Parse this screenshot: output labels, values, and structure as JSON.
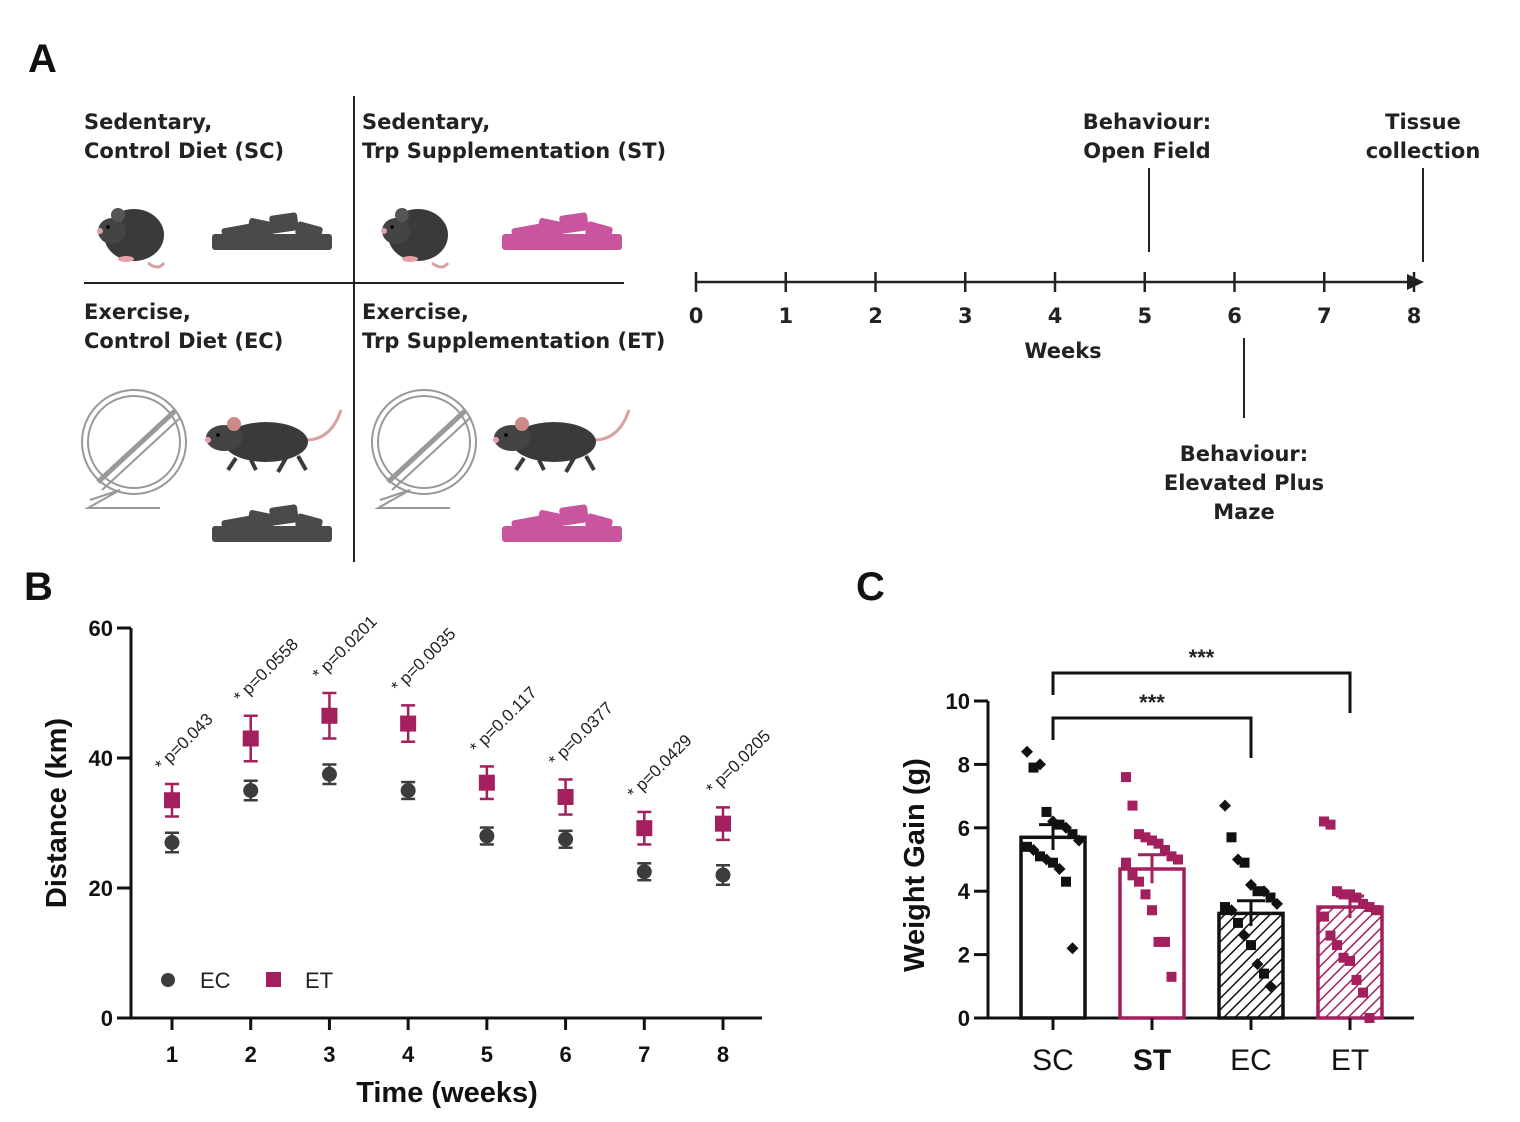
{
  "panels": {
    "a": "A",
    "b": "B",
    "c": "C"
  },
  "design": {
    "sc_line1": "Sedentary,",
    "sc_line2": "Control Diet (SC)",
    "st_line1": "Sedentary,",
    "st_line2": "Trp Supplementation (ST)",
    "ec_line1": "Exercise,",
    "ec_line2": "Control Diet (EC)",
    "et_line1": "Exercise,",
    "et_line2": "Trp Supplementation (ET)",
    "chow_colors": {
      "control": "#4a4a4a",
      "trp": "#c9559f"
    }
  },
  "timeline": {
    "ticks": [
      "0",
      "1",
      "2",
      "3",
      "4",
      "5",
      "6",
      "7",
      "8"
    ],
    "axis_label": "Weeks",
    "open_field_1": "Behaviour:",
    "open_field_2": "Open Field",
    "tissue_1": "Tissue",
    "tissue_2": "collection",
    "epm_1": "Behaviour:",
    "epm_2": "Elevated Plus",
    "epm_3": "Maze"
  },
  "chart_data": [
    {
      "type": "scatter",
      "panel": "B",
      "xlabel": "Time (weeks)",
      "ylabel": "Distance (km)",
      "ylim": [
        0,
        60
      ],
      "yticks": [
        "0",
        "20",
        "40",
        "60"
      ],
      "categories": [
        "1",
        "2",
        "3",
        "4",
        "5",
        "6",
        "7",
        "8"
      ],
      "series": [
        {
          "name": "EC",
          "color": "#3c3c3c",
          "marker": "circle",
          "values": [
            27,
            35,
            37.5,
            35,
            28,
            27.5,
            22.5,
            22
          ],
          "errors": [
            1.5,
            1.5,
            1.5,
            1.3,
            1.3,
            1.3,
            1.3,
            1.5
          ]
        },
        {
          "name": "ET",
          "color": "#a31f5d",
          "marker": "square",
          "values": [
            33.5,
            43,
            46.5,
            45.3,
            36.2,
            34,
            29.2,
            29.9
          ],
          "errors": [
            2.5,
            3.5,
            3.5,
            2.8,
            2.5,
            2.7,
            2.5,
            2.5
          ]
        }
      ],
      "annotations": [
        "* p=0.043",
        "* p=0.0558",
        "* p=0.0201",
        "* p=0.0035",
        "* p=0.0.117",
        "* p=0.0377",
        "* p=0.0429",
        "* p=0.0205"
      ],
      "legend": "bottom-left"
    },
    {
      "type": "bar",
      "panel": "C",
      "ylabel": "Weight Gain (g)",
      "ylim": [
        0,
        10
      ],
      "yticks": [
        "0",
        "2",
        "4",
        "6",
        "8",
        "10"
      ],
      "categories": [
        "SC",
        "ST",
        "EC",
        "ET"
      ],
      "values": [
        5.7,
        4.7,
        3.3,
        3.5
      ],
      "errors": [
        0.4,
        0.45,
        0.4,
        0.35
      ],
      "colors": [
        "#111111",
        "#a31f5d",
        "#111111",
        "#a31f5d"
      ],
      "fills": [
        "open",
        "open",
        "hatched",
        "hatched"
      ],
      "points": [
        [
          8.4,
          7.9,
          8.0,
          6.5,
          6.2,
          6.1,
          6.0,
          5.8,
          5.6,
          5.4,
          5.3,
          5.1,
          5.0,
          4.9,
          4.7,
          4.3,
          2.2
        ],
        [
          7.6,
          6.7,
          5.8,
          5.7,
          5.6,
          5.5,
          5.3,
          5.1,
          5.0,
          4.9,
          4.5,
          4.3,
          3.9,
          3.4,
          2.4,
          2.4,
          1.3
        ],
        [
          6.7,
          5.7,
          5.0,
          4.9,
          4.2,
          4.0,
          4.0,
          3.8,
          3.6,
          3.5,
          3.4,
          3.0,
          2.6,
          2.3,
          1.7,
          1.4,
          1.0
        ],
        [
          6.2,
          6.1,
          4.0,
          3.9,
          3.9,
          3.8,
          3.6,
          3.5,
          3.4,
          3.2,
          2.6,
          2.3,
          1.9,
          1.8,
          1.2,
          0.8,
          0.0
        ]
      ],
      "significance": [
        {
          "from": "SC",
          "to": "EC",
          "label": "***"
        },
        {
          "from": "SC",
          "to": "ET",
          "label": "***"
        }
      ]
    }
  ]
}
